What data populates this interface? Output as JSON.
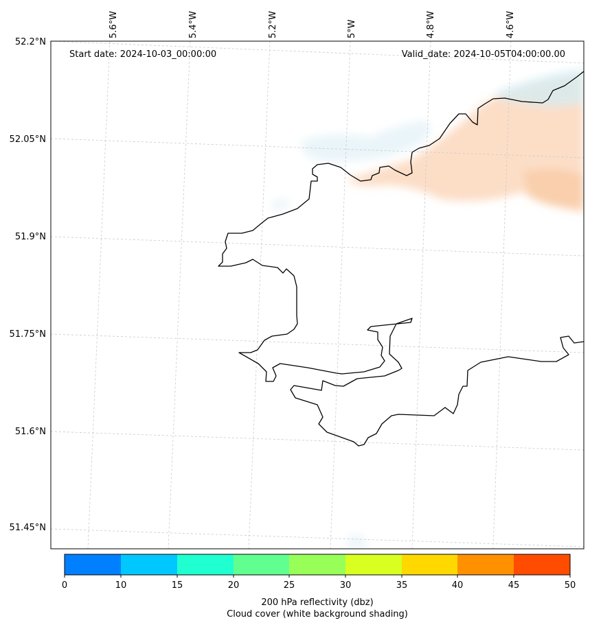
{
  "map": {
    "start_date": "Start date: 2024-10-03_00:00:00",
    "valid_date": "Valid_date: 2024-10-05T04:00:00.00",
    "lon_labels": [
      "5.6°W",
      "5.4°W",
      "5.2°W",
      "5°W",
      "4.8°W",
      "4.6°W"
    ],
    "lat_labels": [
      "52.2°N",
      "52.05°N",
      "51.9°N",
      "51.75°N",
      "51.6°N",
      "51.45°N"
    ]
  },
  "colorbar": {
    "ticks": [
      "0",
      "10",
      "15",
      "20",
      "25",
      "30",
      "35",
      "40",
      "45",
      "50"
    ],
    "colors": [
      "#0080ff",
      "#00c8ff",
      "#20ffd0",
      "#60ff90",
      "#98ff58",
      "#d8ff20",
      "#ffd800",
      "#ff9000",
      "#ff4c00"
    ],
    "label_line1": "200 hPa reflectivity (dbz)",
    "label_line2": "Cloud cover (white background shading)"
  }
}
